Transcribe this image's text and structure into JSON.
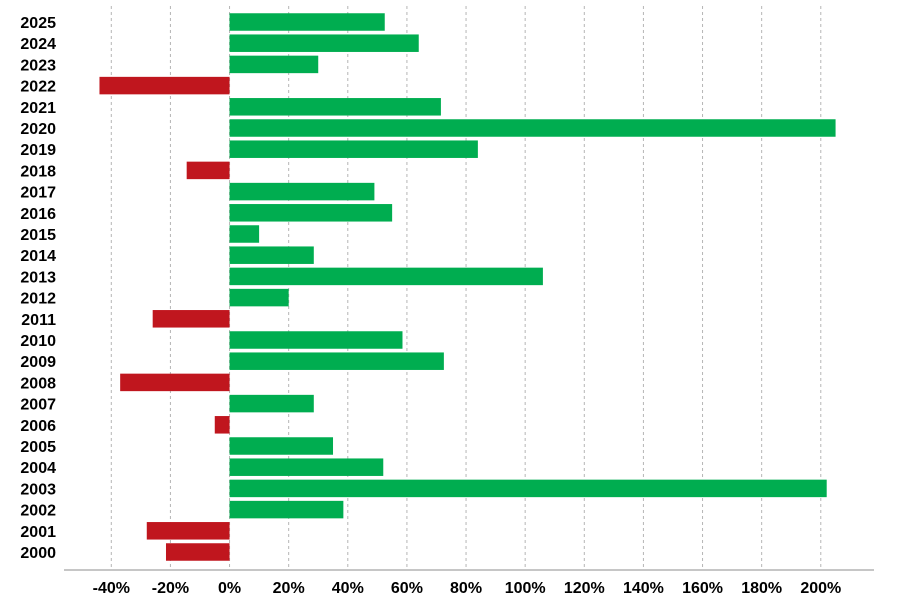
{
  "chart_data": {
    "type": "bar",
    "orientation": "horizontal",
    "categories": [
      "2025",
      "2024",
      "2023",
      "2022",
      "2021",
      "2020",
      "2019",
      "2018",
      "2017",
      "2016",
      "2015",
      "2014",
      "2013",
      "2012",
      "2011",
      "2010",
      "2009",
      "2008",
      "2007",
      "2006",
      "2005",
      "2004",
      "2003",
      "2002",
      "2001",
      "2000"
    ],
    "values": [
      52.5,
      64,
      30,
      -44,
      71.5,
      205,
      84,
      -14.5,
      49,
      55,
      10,
      28.5,
      106,
      20,
      -26,
      58.5,
      72.5,
      -37,
      28.5,
      -5,
      35,
      52,
      202,
      38.5,
      -28,
      -21.5
    ],
    "xlim": [
      -56,
      218
    ],
    "xticks": [
      -40,
      -20,
      0,
      20,
      40,
      60,
      80,
      100,
      120,
      140,
      160,
      180,
      200
    ],
    "xtick_labels": [
      "-40%",
      "-20%",
      "0%",
      "20%",
      "40%",
      "60%",
      "80%",
      "100%",
      "120%",
      "140%",
      "160%",
      "180%",
      "200%"
    ],
    "title": "",
    "xlabel": "",
    "ylabel": "",
    "grid": "vertical dashed",
    "colors": {
      "positive": "#00ad50",
      "negative": "#c0161e"
    }
  }
}
